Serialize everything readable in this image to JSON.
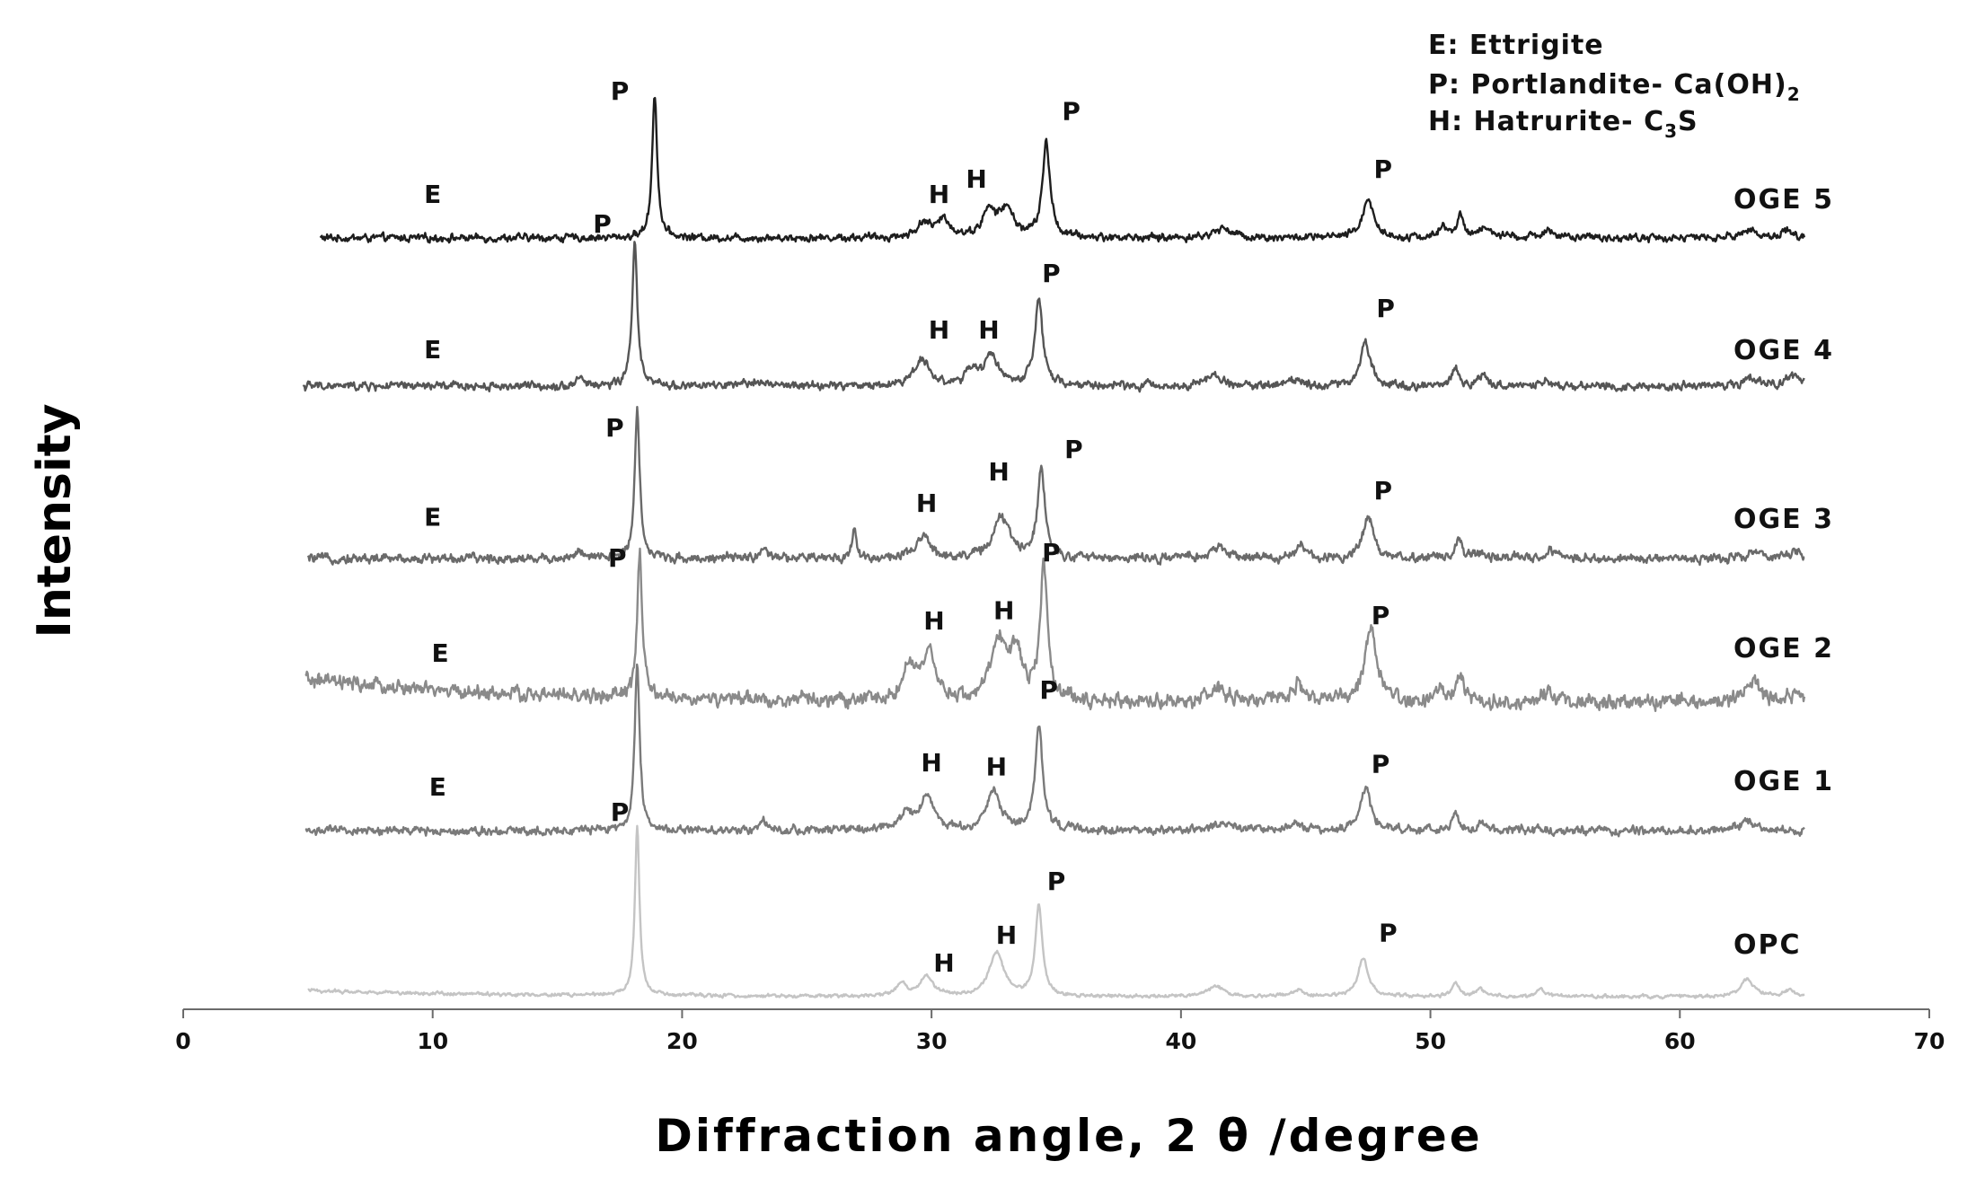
{
  "chart_data": {
    "type": "line",
    "title": "",
    "xlabel": "Diffraction angle, 2 θ /degree",
    "ylabel": "Intensity",
    "xlim": [
      0,
      70
    ],
    "xticks": [
      0,
      10,
      20,
      30,
      40,
      50,
      60,
      70
    ],
    "yticks_shown": false,
    "grid": false,
    "legend": {
      "placement": "top-right",
      "entries": [
        {
          "prefix": "E:",
          "text": "Ettrigite",
          "formula": ""
        },
        {
          "prefix": "P:",
          "text": "Portlandite-",
          "formula": "Ca(OH)",
          "subscript": "2"
        },
        {
          "prefix": "H:",
          "text": "Hatrurite-",
          "formula": "C",
          "subscript": "3",
          "formula_tail": "S"
        }
      ]
    },
    "series": [
      {
        "name": "OGE 5",
        "color": "#1e1e1e",
        "x_range": [
          5.5,
          65
        ],
        "baseline": 0,
        "noise": 0.045,
        "peaks": [
          {
            "x": 18.9,
            "h": 1.15,
            "w": 0.12
          },
          {
            "x": 29.7,
            "h": 0.12,
            "w": 0.3
          },
          {
            "x": 30.5,
            "h": 0.14,
            "w": 0.3
          },
          {
            "x": 32.3,
            "h": 0.2,
            "w": 0.3
          },
          {
            "x": 33.0,
            "h": 0.22,
            "w": 0.35
          },
          {
            "x": 34.6,
            "h": 0.75,
            "w": 0.18
          },
          {
            "x": 41.7,
            "h": 0.08,
            "w": 0.4
          },
          {
            "x": 47.5,
            "h": 0.32,
            "w": 0.25
          },
          {
            "x": 50.5,
            "h": 0.08,
            "w": 0.2
          },
          {
            "x": 51.2,
            "h": 0.18,
            "w": 0.15
          },
          {
            "x": 52.2,
            "h": 0.08,
            "w": 0.3
          },
          {
            "x": 54.7,
            "h": 0.08,
            "w": 0.2
          },
          {
            "x": 62.8,
            "h": 0.07,
            "w": 0.3
          },
          {
            "x": 64.3,
            "h": 0.05,
            "w": 0.3
          }
        ],
        "annotations": [
          {
            "label": "E",
            "x": 10.0,
            "h": 0.28
          },
          {
            "label": "P",
            "x": 17.5,
            "h": 1.1
          },
          {
            "label": "H",
            "x": 30.3,
            "h": 0.28
          },
          {
            "label": "H",
            "x": 31.8,
            "h": 0.4
          },
          {
            "label": "P",
            "x": 35.6,
            "h": 0.94
          },
          {
            "label": "P",
            "x": 48.1,
            "h": 0.48
          }
        ],
        "label_text": "OGE 5"
      },
      {
        "name": "OGE 4",
        "color": "#555555",
        "x_range": [
          4.8,
          65
        ],
        "baseline": 0,
        "noise": 0.05,
        "peaks": [
          {
            "x": 15.9,
            "h": 0.08,
            "w": 0.15
          },
          {
            "x": 18.1,
            "h": 1.18,
            "w": 0.12
          },
          {
            "x": 23.0,
            "h": 0.06,
            "w": 0.2
          },
          {
            "x": 29.6,
            "h": 0.22,
            "w": 0.35
          },
          {
            "x": 31.6,
            "h": 0.1,
            "w": 0.3
          },
          {
            "x": 32.4,
            "h": 0.24,
            "w": 0.35
          },
          {
            "x": 34.3,
            "h": 0.7,
            "w": 0.18
          },
          {
            "x": 41.3,
            "h": 0.08,
            "w": 0.4
          },
          {
            "x": 44.6,
            "h": 0.06,
            "w": 0.3
          },
          {
            "x": 47.4,
            "h": 0.34,
            "w": 0.25
          },
          {
            "x": 51.0,
            "h": 0.16,
            "w": 0.15
          },
          {
            "x": 52.1,
            "h": 0.08,
            "w": 0.2
          },
          {
            "x": 54.6,
            "h": 0.06,
            "w": 0.2
          },
          {
            "x": 62.9,
            "h": 0.07,
            "w": 0.3
          },
          {
            "x": 64.5,
            "h": 0.08,
            "w": 0.3
          }
        ],
        "annotations": [
          {
            "label": "E",
            "x": 10.0,
            "h": 0.22
          },
          {
            "label": "P",
            "x": 16.8,
            "h": 1.22
          },
          {
            "label": "H",
            "x": 30.3,
            "h": 0.38
          },
          {
            "label": "H",
            "x": 32.3,
            "h": 0.38
          },
          {
            "label": "P",
            "x": 34.8,
            "h": 0.83
          },
          {
            "label": "P",
            "x": 48.2,
            "h": 0.55
          }
        ],
        "label_text": "OGE 4"
      },
      {
        "name": "OGE 3",
        "color": "#6a6a6a",
        "x_range": [
          5,
          65
        ],
        "baseline": 0,
        "noise": 0.055,
        "peaks": [
          {
            "x": 15.8,
            "h": 0.06,
            "w": 0.15
          },
          {
            "x": 18.2,
            "h": 1.2,
            "w": 0.12
          },
          {
            "x": 23.2,
            "h": 0.06,
            "w": 0.2
          },
          {
            "x": 26.9,
            "h": 0.24,
            "w": 0.1
          },
          {
            "x": 29.7,
            "h": 0.18,
            "w": 0.3
          },
          {
            "x": 32.8,
            "h": 0.32,
            "w": 0.4
          },
          {
            "x": 34.4,
            "h": 0.72,
            "w": 0.18
          },
          {
            "x": 41.5,
            "h": 0.08,
            "w": 0.4
          },
          {
            "x": 44.8,
            "h": 0.1,
            "w": 0.2
          },
          {
            "x": 47.5,
            "h": 0.34,
            "w": 0.25
          },
          {
            "x": 51.1,
            "h": 0.14,
            "w": 0.15
          },
          {
            "x": 52.0,
            "h": 0.06,
            "w": 0.2
          },
          {
            "x": 54.8,
            "h": 0.08,
            "w": 0.2
          },
          {
            "x": 63.1,
            "h": 0.06,
            "w": 0.3
          },
          {
            "x": 64.6,
            "h": 0.05,
            "w": 0.3
          }
        ],
        "annotations": [
          {
            "label": "E",
            "x": 10.0,
            "h": 0.26
          },
          {
            "label": "P",
            "x": 17.3,
            "h": 0.97
          },
          {
            "label": "H",
            "x": 29.8,
            "h": 0.37
          },
          {
            "label": "H",
            "x": 32.7,
            "h": 0.62
          },
          {
            "label": "P",
            "x": 35.7,
            "h": 0.8
          },
          {
            "label": "P",
            "x": 48.1,
            "h": 0.47
          }
        ],
        "label_text": "OGE 3"
      },
      {
        "name": "OGE 2",
        "color": "#8a8a8a",
        "x_range": [
          4.9,
          65
        ],
        "baseline": 0,
        "noise": 0.085,
        "slope": 0.18,
        "peaks": [
          {
            "x": 18.3,
            "h": 1.15,
            "w": 0.12
          },
          {
            "x": 29.1,
            "h": 0.28,
            "w": 0.3
          },
          {
            "x": 29.9,
            "h": 0.35,
            "w": 0.3
          },
          {
            "x": 32.7,
            "h": 0.48,
            "w": 0.35
          },
          {
            "x": 33.4,
            "h": 0.36,
            "w": 0.3
          },
          {
            "x": 34.5,
            "h": 1.05,
            "w": 0.18
          },
          {
            "x": 41.5,
            "h": 0.1,
            "w": 0.4
          },
          {
            "x": 44.7,
            "h": 0.16,
            "w": 0.25
          },
          {
            "x": 47.6,
            "h": 0.58,
            "w": 0.28
          },
          {
            "x": 50.4,
            "h": 0.1,
            "w": 0.2
          },
          {
            "x": 51.2,
            "h": 0.2,
            "w": 0.15
          },
          {
            "x": 54.7,
            "h": 0.08,
            "w": 0.2
          },
          {
            "x": 62.9,
            "h": 0.18,
            "w": 0.3
          },
          {
            "x": 64.4,
            "h": 0.06,
            "w": 0.3
          }
        ],
        "annotations": [
          {
            "label": "E",
            "x": 10.3,
            "h": 0.32
          },
          {
            "label": "P",
            "x": 17.4,
            "h": 1.08
          },
          {
            "label": "H",
            "x": 30.1,
            "h": 0.58
          },
          {
            "label": "H",
            "x": 32.9,
            "h": 0.66
          },
          {
            "label": "P",
            "x": 34.8,
            "h": 1.12
          },
          {
            "label": "P",
            "x": 48.0,
            "h": 0.62
          }
        ],
        "label_text": "OGE 2"
      },
      {
        "name": "OGE 1",
        "color": "#7a7a7a",
        "x_range": [
          4.9,
          65
        ],
        "baseline": 0,
        "noise": 0.05,
        "peaks": [
          {
            "x": 18.2,
            "h": 1.3,
            "w": 0.12
          },
          {
            "x": 23.2,
            "h": 0.08,
            "w": 0.2
          },
          {
            "x": 29.0,
            "h": 0.14,
            "w": 0.3
          },
          {
            "x": 29.8,
            "h": 0.28,
            "w": 0.3
          },
          {
            "x": 32.5,
            "h": 0.3,
            "w": 0.35
          },
          {
            "x": 34.3,
            "h": 0.82,
            "w": 0.18
          },
          {
            "x": 41.5,
            "h": 0.06,
            "w": 0.4
          },
          {
            "x": 44.6,
            "h": 0.08,
            "w": 0.2
          },
          {
            "x": 47.4,
            "h": 0.34,
            "w": 0.25
          },
          {
            "x": 51.0,
            "h": 0.12,
            "w": 0.15
          },
          {
            "x": 52.1,
            "h": 0.06,
            "w": 0.2
          },
          {
            "x": 62.7,
            "h": 0.08,
            "w": 0.3
          }
        ],
        "annotations": [
          {
            "label": "E",
            "x": 10.2,
            "h": 0.28
          },
          {
            "label": "H",
            "x": 30.0,
            "h": 0.47
          },
          {
            "label": "H",
            "x": 32.6,
            "h": 0.44
          },
          {
            "label": "P",
            "x": 34.7,
            "h": 1.05
          },
          {
            "label": "P",
            "x": 48.0,
            "h": 0.46
          }
        ],
        "label_text": "OGE 1"
      },
      {
        "name": "OPC",
        "color": "#c4c4c4",
        "x_range": [
          5,
          65
        ],
        "baseline": 0,
        "noise": 0.02,
        "slope": 0.05,
        "peaks": [
          {
            "x": 18.2,
            "h": 1.35,
            "w": 0.11
          },
          {
            "x": 28.8,
            "h": 0.1,
            "w": 0.25
          },
          {
            "x": 29.8,
            "h": 0.16,
            "w": 0.3
          },
          {
            "x": 32.6,
            "h": 0.35,
            "w": 0.35
          },
          {
            "x": 34.3,
            "h": 0.72,
            "w": 0.17
          },
          {
            "x": 41.4,
            "h": 0.08,
            "w": 0.4
          },
          {
            "x": 44.7,
            "h": 0.06,
            "w": 0.25
          },
          {
            "x": 47.3,
            "h": 0.3,
            "w": 0.25
          },
          {
            "x": 51.0,
            "h": 0.12,
            "w": 0.15
          },
          {
            "x": 52.0,
            "h": 0.06,
            "w": 0.2
          },
          {
            "x": 54.4,
            "h": 0.06,
            "w": 0.2
          },
          {
            "x": 62.7,
            "h": 0.14,
            "w": 0.3
          },
          {
            "x": 64.4,
            "h": 0.05,
            "w": 0.3
          }
        ],
        "annotations": [
          {
            "label": "P",
            "x": 17.5,
            "h": 1.4
          },
          {
            "label": "H",
            "x": 30.5,
            "h": 0.2
          },
          {
            "label": "H",
            "x": 33.0,
            "h": 0.42
          },
          {
            "label": "P",
            "x": 35.0,
            "h": 0.85
          },
          {
            "label": "P",
            "x": 48.3,
            "h": 0.44
          }
        ],
        "label_text": "OPC"
      }
    ]
  }
}
